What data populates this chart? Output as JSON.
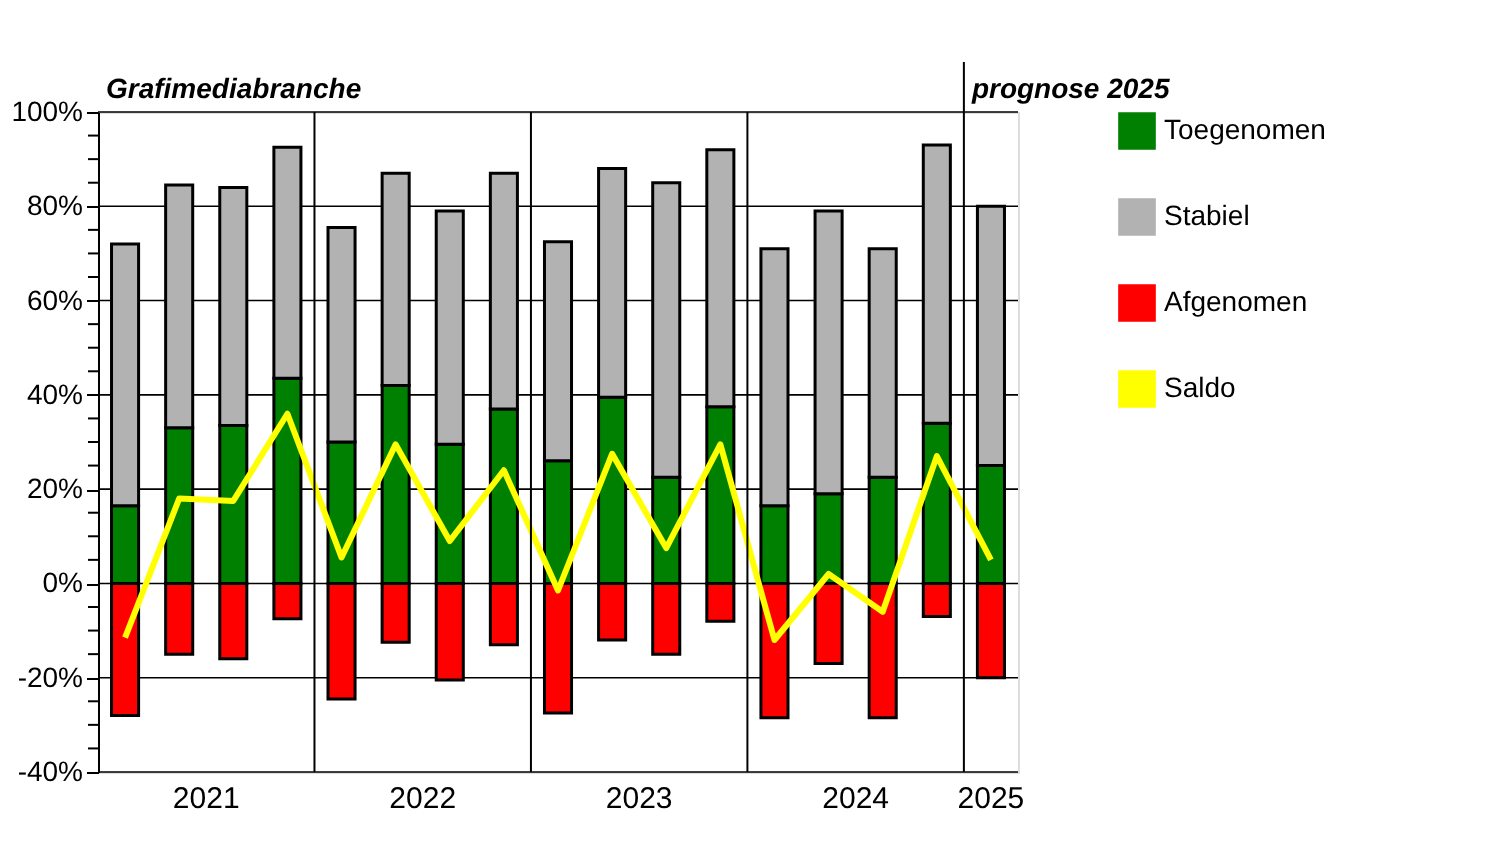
{
  "chart_data": {
    "type": "bar",
    "title": "Grafimediabranche",
    "stacked": true,
    "categories": [
      null,
      null,
      null,
      null,
      null,
      null,
      null,
      null,
      null,
      null,
      null,
      null,
      null,
      null,
      null,
      null,
      null
    ],
    "series": [
      {
        "name": "Toegenomen",
        "color": "#008000",
        "values": [
          16.5,
          33,
          33.5,
          43.5,
          30,
          42,
          29.5,
          37,
          26,
          39.5,
          22.5,
          37.5,
          16.5,
          19,
          22.5,
          34,
          25
        ]
      },
      {
        "name": "Stabiel",
        "color": "#b2b2b2",
        "values": [
          55.5,
          51.5,
          50.5,
          49,
          45.5,
          45,
          49.5,
          50,
          46.5,
          48.5,
          62.5,
          54.5,
          54.5,
          60,
          48.5,
          59,
          55
        ]
      },
      {
        "name": "Afgenomen",
        "color": "#ff0000",
        "values": [
          -28,
          -15,
          -16,
          -7.5,
          -24.5,
          -12.5,
          -20.5,
          -13,
          -27.5,
          -12,
          -15,
          -8,
          -28.5,
          -17,
          -28.5,
          -7,
          -20
        ]
      },
      {
        "name": "Saldo",
        "type": "line",
        "color": "#ffff00",
        "values": [
          -11.5,
          18,
          17.5,
          36,
          5.5,
          29.5,
          9,
          24,
          -1.5,
          27.5,
          7.5,
          29.5,
          -12,
          2,
          -6,
          27,
          5
        ]
      }
    ],
    "ylim": [
      -40,
      100
    ],
    "yticks": [
      {
        "value": -40,
        "label": "-40%"
      },
      {
        "value": -35,
        "label": null
      },
      {
        "value": -30,
        "label": null
      },
      {
        "value": -25,
        "label": null
      },
      {
        "value": -20,
        "label": "-20%"
      },
      {
        "value": -15,
        "label": null
      },
      {
        "value": -10,
        "label": null
      },
      {
        "value": -5,
        "label": null
      },
      {
        "value": 0,
        "label": "0%"
      },
      {
        "value": 5,
        "label": null
      },
      {
        "value": 10,
        "label": null
      },
      {
        "value": 15,
        "label": null
      },
      {
        "value": 20,
        "label": "20%"
      },
      {
        "value": 25,
        "label": null
      },
      {
        "value": 30,
        "label": null
      },
      {
        "value": 35,
        "label": null
      },
      {
        "value": 40,
        "label": "40%"
      },
      {
        "value": 45,
        "label": null
      },
      {
        "value": 50,
        "label": null
      },
      {
        "value": 55,
        "label": null
      },
      {
        "value": 60,
        "label": "60%"
      },
      {
        "value": 65,
        "label": null
      },
      {
        "value": 70,
        "label": null
      },
      {
        "value": 75,
        "label": null
      },
      {
        "value": 80,
        "label": "80%"
      },
      {
        "value": 85,
        "label": null
      },
      {
        "value": 90,
        "label": null
      },
      {
        "value": 95,
        "label": null
      },
      {
        "value": 100,
        "label": "100%"
      }
    ],
    "grid": "y",
    "legend": "right",
    "marker": "none",
    "line_style": "solid",
    "annotations": [
      "2021",
      "2022",
      "2023",
      "2024",
      "2025",
      "prognose 2025"
    ]
  }
}
